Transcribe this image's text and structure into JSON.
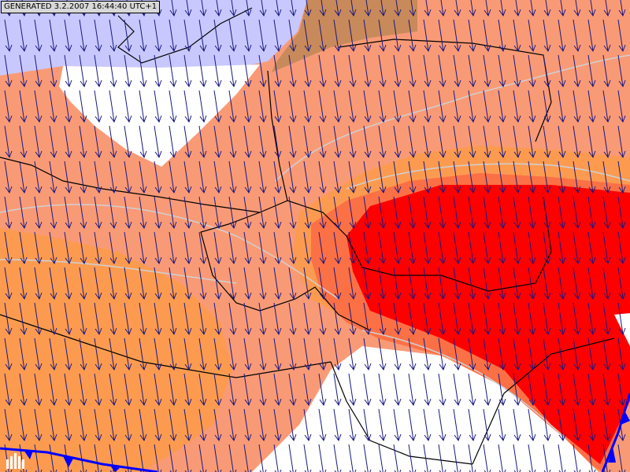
{
  "header": {
    "label": "GENERATED 3.2.2007 16:44:40 UTC+1"
  }
}
